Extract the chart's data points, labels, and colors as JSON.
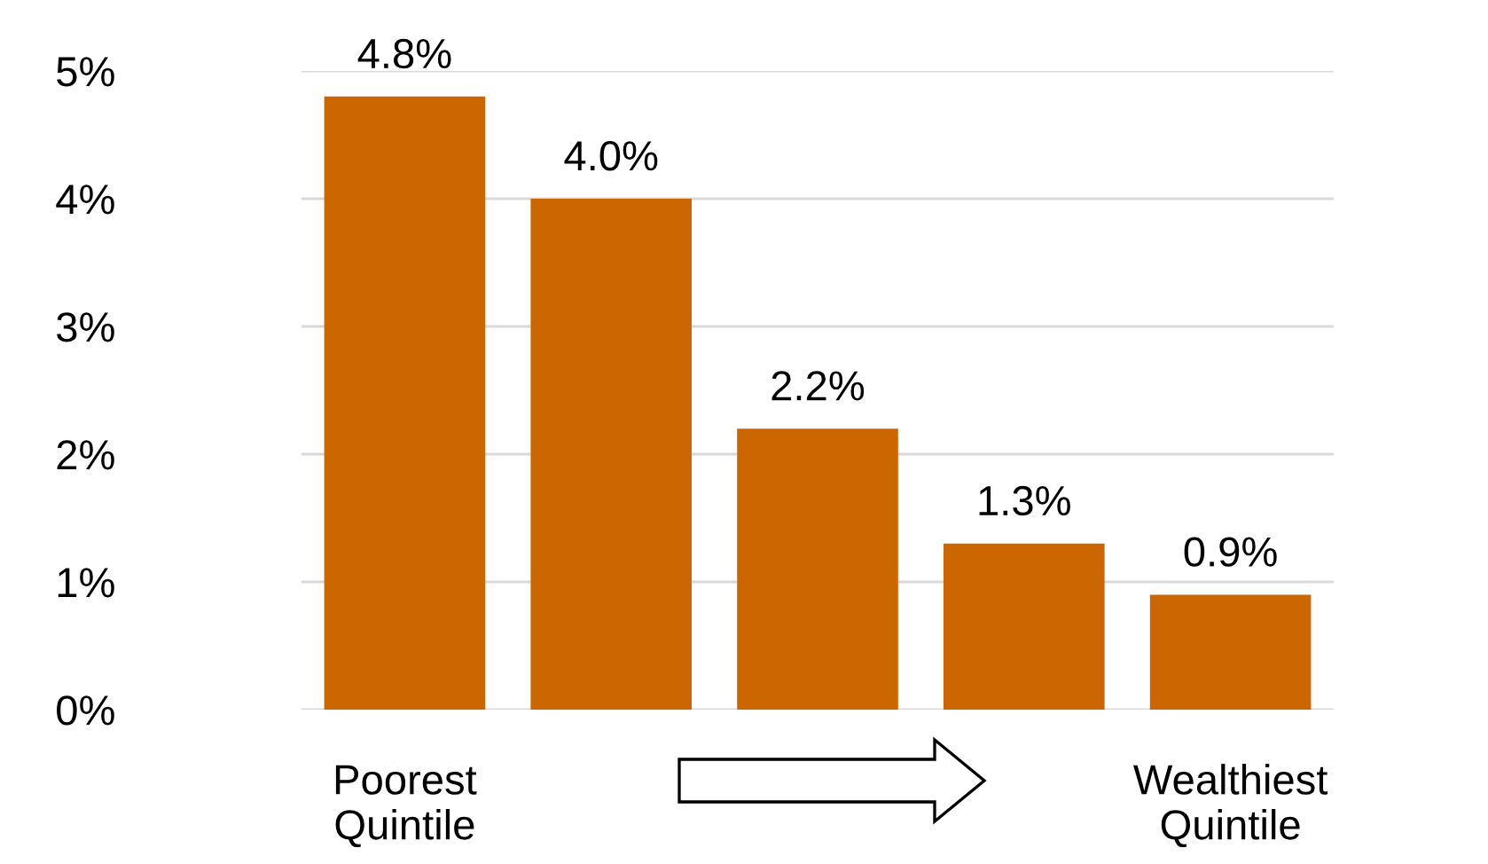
{
  "chart_data": {
    "type": "bar",
    "categories": [
      "Poorest\nQuintile",
      null,
      null,
      null,
      "Wealthiest\nQuintile"
    ],
    "values": [
      4.8,
      4.0,
      2.2,
      1.3,
      0.9
    ],
    "value_labels": [
      "4.8%",
      "4.0%",
      "2.2%",
      "1.3%",
      "0.9%"
    ],
    "color": "#cc6600",
    "ylim": [
      0,
      5
    ],
    "yticks": [
      {
        "value": 0,
        "label": "0%"
      },
      {
        "value": 1,
        "label": "1%"
      },
      {
        "value": 2,
        "label": "2%"
      },
      {
        "value": 3,
        "label": "3%"
      },
      {
        "value": 4,
        "label": "4%"
      },
      {
        "value": 5,
        "label": "5%"
      }
    ],
    "grid": "y"
  }
}
